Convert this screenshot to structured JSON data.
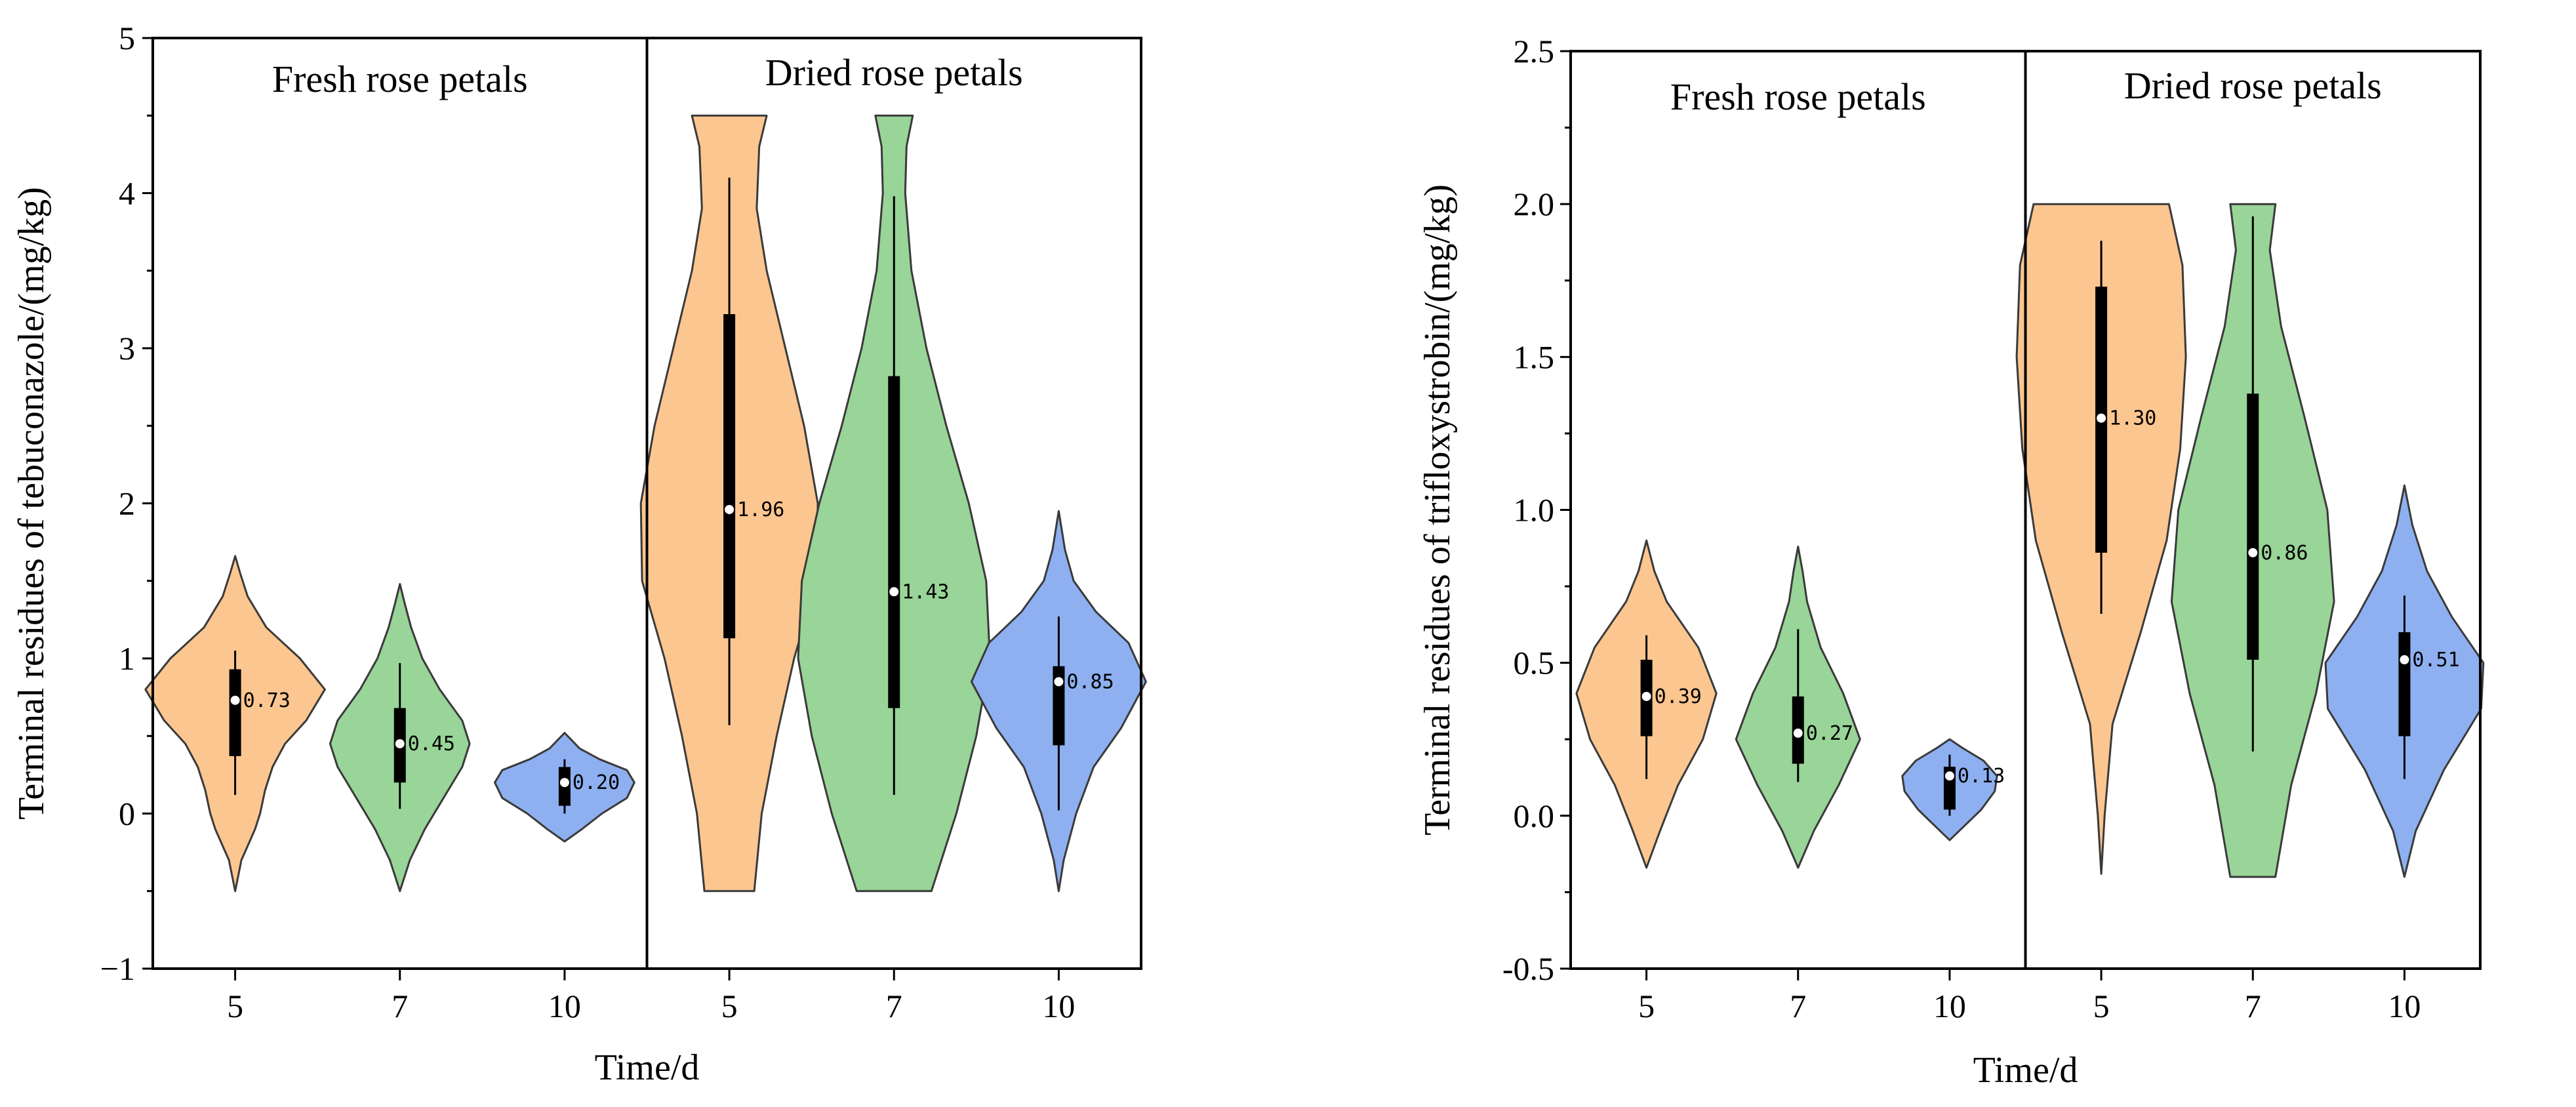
{
  "chart_data": [
    {
      "type": "violin",
      "panel": "left",
      "title": "",
      "xlabel": "Time/d",
      "ylabel": "Terminal residues of tebuconazole/(mg/kg)",
      "ylim": [
        -1,
        5
      ],
      "yticks": [
        -1,
        0,
        1,
        2,
        3,
        4,
        5
      ],
      "ytick_labels": [
        "−1",
        "0",
        "1",
        "2",
        "3",
        "4",
        "5"
      ],
      "categories": [
        "5",
        "7",
        "10",
        "5",
        "7",
        "10"
      ],
      "groups": [
        {
          "name": "Fresh rose petals",
          "categories": [
            "5",
            "7",
            "10"
          ]
        },
        {
          "name": "Dried rose petals",
          "categories": [
            "5",
            "7",
            "10"
          ]
        }
      ],
      "colors": {
        "5": "#fcc690",
        "7": "#99d498",
        "10": "#8eb0f0"
      },
      "violins": [
        {
          "group": "Fresh rose petals",
          "x": "5",
          "median": 0.73,
          "median_label": "0.73",
          "q1": 0.37,
          "q3": 0.93,
          "whisker_low": 0.12,
          "whisker_high": 1.05,
          "ymin": -0.5,
          "ymax": 1.66,
          "profile": [
            [
              -0.5,
              0
            ],
            [
              -0.3,
              0.05
            ],
            [
              -0.1,
              0.16
            ],
            [
              0.0,
              0.2
            ],
            [
              0.15,
              0.24
            ],
            [
              0.3,
              0.3
            ],
            [
              0.45,
              0.4
            ],
            [
              0.6,
              0.57
            ],
            [
              0.8,
              0.72
            ],
            [
              1.0,
              0.52
            ],
            [
              1.2,
              0.25
            ],
            [
              1.4,
              0.1
            ],
            [
              1.55,
              0.04
            ],
            [
              1.66,
              0
            ]
          ]
        },
        {
          "group": "Fresh rose petals",
          "x": "7",
          "median": 0.45,
          "median_label": "0.45",
          "q1": 0.2,
          "q3": 0.68,
          "whisker_low": 0.03,
          "whisker_high": 0.97,
          "ymin": -0.5,
          "ymax": 1.48,
          "profile": [
            [
              -0.5,
              0
            ],
            [
              -0.3,
              0.08
            ],
            [
              -0.1,
              0.2
            ],
            [
              0.1,
              0.35
            ],
            [
              0.3,
              0.5
            ],
            [
              0.45,
              0.56
            ],
            [
              0.6,
              0.5
            ],
            [
              0.8,
              0.32
            ],
            [
              1.0,
              0.18
            ],
            [
              1.2,
              0.09
            ],
            [
              1.35,
              0.04
            ],
            [
              1.48,
              0
            ]
          ]
        },
        {
          "group": "Fresh rose petals",
          "x": "10",
          "median": 0.2,
          "median_label": "0.20",
          "q1": 0.05,
          "q3": 0.3,
          "whisker_low": 0.0,
          "whisker_high": 0.35,
          "ymin": -0.18,
          "ymax": 0.52,
          "profile": [
            [
              -0.18,
              0
            ],
            [
              -0.1,
              0.14
            ],
            [
              0.0,
              0.3
            ],
            [
              0.1,
              0.5
            ],
            [
              0.2,
              0.56
            ],
            [
              0.28,
              0.5
            ],
            [
              0.35,
              0.28
            ],
            [
              0.42,
              0.12
            ],
            [
              0.47,
              0.06
            ],
            [
              0.52,
              0
            ]
          ]
        },
        {
          "group": "Dried rose petals",
          "x": "5",
          "median": 1.96,
          "median_label": "1.96",
          "q1": 1.13,
          "q3": 3.22,
          "whisker_low": 0.57,
          "whisker_high": 4.1,
          "ymin": -0.5,
          "ymax": 4.5,
          "profile": [
            [
              -0.5,
              0.2
            ],
            [
              0.0,
              0.26
            ],
            [
              0.5,
              0.38
            ],
            [
              1.0,
              0.52
            ],
            [
              1.5,
              0.7
            ],
            [
              2.0,
              0.71
            ],
            [
              2.5,
              0.6
            ],
            [
              3.0,
              0.45
            ],
            [
              3.5,
              0.3
            ],
            [
              3.9,
              0.22
            ],
            [
              4.3,
              0.24
            ],
            [
              4.5,
              0.3
            ]
          ]
        },
        {
          "group": "Dried rose petals",
          "x": "7",
          "median": 1.43,
          "median_label": "1.43",
          "q1": 0.68,
          "q3": 2.82,
          "whisker_low": 0.12,
          "whisker_high": 3.98,
          "ymin": -0.5,
          "ymax": 4.5,
          "profile": [
            [
              -0.5,
              0.3
            ],
            [
              0.0,
              0.5
            ],
            [
              0.5,
              0.66
            ],
            [
              1.0,
              0.77
            ],
            [
              1.5,
              0.74
            ],
            [
              2.0,
              0.6
            ],
            [
              2.5,
              0.42
            ],
            [
              3.0,
              0.26
            ],
            [
              3.5,
              0.14
            ],
            [
              4.0,
              0.09
            ],
            [
              4.3,
              0.1
            ],
            [
              4.5,
              0.15
            ]
          ]
        },
        {
          "group": "Dried rose petals",
          "x": "10",
          "median": 0.85,
          "median_label": "0.85",
          "q1": 0.44,
          "q3": 0.95,
          "whisker_low": 0.02,
          "whisker_high": 1.27,
          "ymin": -0.5,
          "ymax": 1.95,
          "profile": [
            [
              -0.5,
              0
            ],
            [
              -0.3,
              0.04
            ],
            [
              0.0,
              0.14
            ],
            [
              0.3,
              0.28
            ],
            [
              0.55,
              0.5
            ],
            [
              0.85,
              0.7
            ],
            [
              1.1,
              0.56
            ],
            [
              1.3,
              0.3
            ],
            [
              1.5,
              0.12
            ],
            [
              1.7,
              0.05
            ],
            [
              1.95,
              0
            ]
          ]
        }
      ]
    },
    {
      "type": "violin",
      "panel": "right",
      "title": "",
      "xlabel": "Time/d",
      "ylabel": "Terminal residues of trifloxystrobin/(mg/kg)",
      "ylim": [
        -0.5,
        2.5
      ],
      "yticks": [
        -0.5,
        0.0,
        0.5,
        1.0,
        1.5,
        2.0,
        2.5
      ],
      "ytick_labels": [
        "-0.5",
        "0.0",
        "0.5",
        "1.0",
        "1.5",
        "2.0",
        "2.5"
      ],
      "categories": [
        "5",
        "7",
        "10",
        "5",
        "7",
        "10"
      ],
      "groups": [
        {
          "name": "Fresh rose petals",
          "categories": [
            "5",
            "7",
            "10"
          ]
        },
        {
          "name": "Dried rose petals",
          "categories": [
            "5",
            "7",
            "10"
          ]
        }
      ],
      "colors": {
        "5": "#fcc690",
        "7": "#99d498",
        "10": "#8eb0f0"
      },
      "violins": [
        {
          "group": "Fresh rose petals",
          "x": "5",
          "median": 0.39,
          "median_label": "0.39",
          "q1": 0.26,
          "q3": 0.51,
          "whisker_low": 0.12,
          "whisker_high": 0.59,
          "ymin": -0.17,
          "ymax": 0.9,
          "profile": [
            [
              -0.17,
              0
            ],
            [
              -0.05,
              0.12
            ],
            [
              0.1,
              0.28
            ],
            [
              0.25,
              0.5
            ],
            [
              0.4,
              0.62
            ],
            [
              0.55,
              0.46
            ],
            [
              0.7,
              0.18
            ],
            [
              0.8,
              0.07
            ],
            [
              0.9,
              0
            ]
          ]
        },
        {
          "group": "Fresh rose petals",
          "x": "7",
          "median": 0.27,
          "median_label": "0.27",
          "q1": 0.17,
          "q3": 0.39,
          "whisker_low": 0.11,
          "whisker_high": 0.61,
          "ymin": -0.17,
          "ymax": 0.88,
          "profile": [
            [
              -0.17,
              0
            ],
            [
              -0.05,
              0.14
            ],
            [
              0.1,
              0.36
            ],
            [
              0.25,
              0.55
            ],
            [
              0.4,
              0.4
            ],
            [
              0.55,
              0.2
            ],
            [
              0.7,
              0.08
            ],
            [
              0.8,
              0.04
            ],
            [
              0.88,
              0
            ]
          ]
        },
        {
          "group": "Fresh rose petals",
          "x": "10",
          "median": 0.13,
          "median_label": "0.13",
          "q1": 0.02,
          "q3": 0.16,
          "whisker_low": 0.0,
          "whisker_high": 0.2,
          "ymin": -0.08,
          "ymax": 0.25,
          "profile": [
            [
              -0.08,
              0
            ],
            [
              -0.03,
              0.14
            ],
            [
              0.02,
              0.28
            ],
            [
              0.08,
              0.4
            ],
            [
              0.13,
              0.42
            ],
            [
              0.18,
              0.3
            ],
            [
              0.22,
              0.12
            ],
            [
              0.25,
              0
            ]
          ]
        },
        {
          "group": "Dried rose petals",
          "x": "5",
          "median": 1.3,
          "median_label": "1.30",
          "q1": 0.86,
          "q3": 1.73,
          "whisker_low": 0.66,
          "whisker_high": 1.88,
          "ymin": -0.19,
          "ymax": 2.0,
          "profile": [
            [
              -0.19,
              0
            ],
            [
              0.0,
              0.03
            ],
            [
              0.3,
              0.1
            ],
            [
              0.6,
              0.35
            ],
            [
              0.9,
              0.58
            ],
            [
              1.2,
              0.7
            ],
            [
              1.5,
              0.75
            ],
            [
              1.8,
              0.72
            ],
            [
              2.0,
              0.6
            ]
          ]
        },
        {
          "group": "Dried rose petals",
          "x": "7",
          "median": 0.86,
          "median_label": "0.86",
          "q1": 0.51,
          "q3": 1.38,
          "whisker_low": 0.21,
          "whisker_high": 1.96,
          "ymin": -0.2,
          "ymax": 2.0,
          "profile": [
            [
              -0.2,
              0.2
            ],
            [
              0.1,
              0.34
            ],
            [
              0.4,
              0.56
            ],
            [
              0.7,
              0.72
            ],
            [
              1.0,
              0.66
            ],
            [
              1.3,
              0.46
            ],
            [
              1.6,
              0.25
            ],
            [
              1.85,
              0.15
            ],
            [
              2.0,
              0.2
            ]
          ]
        },
        {
          "group": "Dried rose petals",
          "x": "10",
          "median": 0.51,
          "median_label": "0.51",
          "q1": 0.26,
          "q3": 0.6,
          "whisker_low": 0.12,
          "whisker_high": 0.72,
          "ymin": -0.2,
          "ymax": 1.08,
          "profile": [
            [
              -0.2,
              0
            ],
            [
              -0.05,
              0.1
            ],
            [
              0.15,
              0.35
            ],
            [
              0.35,
              0.68
            ],
            [
              0.5,
              0.7
            ],
            [
              0.65,
              0.42
            ],
            [
              0.8,
              0.2
            ],
            [
              0.95,
              0.07
            ],
            [
              1.08,
              0
            ]
          ]
        }
      ]
    }
  ]
}
